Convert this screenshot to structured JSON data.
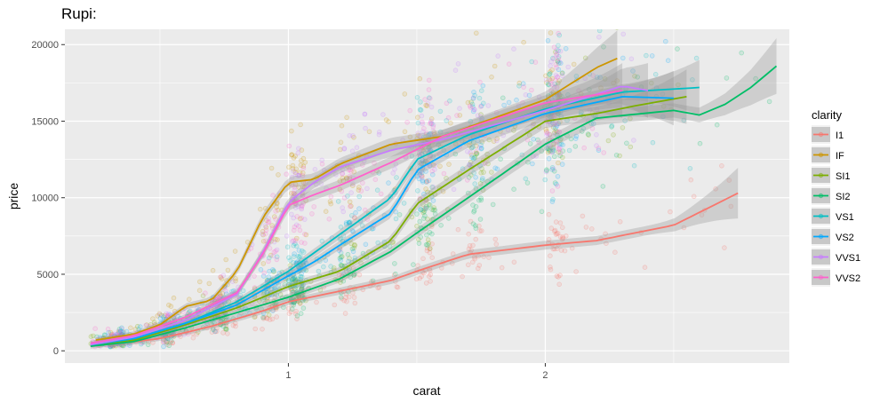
{
  "chart_data": {
    "type": "scatter",
    "title": "Rupi:",
    "xlabel": "carat",
    "ylabel": "price",
    "xlim": [
      0.13,
      2.95
    ],
    "ylim": [
      -800,
      21000
    ],
    "x_ticks": [
      1,
      2
    ],
    "x_tick_labels": [
      "1",
      "2"
    ],
    "y_ticks": [
      0,
      5000,
      10000,
      15000,
      20000
    ],
    "y_tick_labels": [
      "0",
      "5000",
      "10000",
      "15000",
      "20000"
    ],
    "grid": true,
    "legend": {
      "title": "clarity",
      "position": "right"
    },
    "series": [
      {
        "name": "I1",
        "color": "#F8766D",
        "smooth": [
          [
            0.3,
            400
          ],
          [
            0.5,
            800
          ],
          [
            0.7,
            1600
          ],
          [
            0.9,
            2600
          ],
          [
            1.0,
            3200
          ],
          [
            1.2,
            3900
          ],
          [
            1.4,
            4600
          ],
          [
            1.5,
            5200
          ],
          [
            1.7,
            6300
          ],
          [
            2.0,
            6900
          ],
          [
            2.2,
            7200
          ],
          [
            2.5,
            8200
          ],
          [
            2.75,
            10300
          ]
        ]
      },
      {
        "name": "IF",
        "color": "#CD9600",
        "smooth": [
          [
            0.25,
            700
          ],
          [
            0.4,
            1100
          ],
          [
            0.5,
            1700
          ],
          [
            0.6,
            2900
          ],
          [
            0.7,
            3300
          ],
          [
            0.8,
            5200
          ],
          [
            0.9,
            8700
          ],
          [
            1.0,
            11000
          ],
          [
            1.1,
            11200
          ],
          [
            1.2,
            12200
          ],
          [
            1.4,
            13500
          ],
          [
            1.6,
            14000
          ],
          [
            2.0,
            16400
          ],
          [
            2.2,
            18500
          ],
          [
            2.28,
            19100
          ]
        ]
      },
      {
        "name": "SI1",
        "color": "#7CAE00",
        "smooth": [
          [
            0.23,
            400
          ],
          [
            0.4,
            700
          ],
          [
            0.6,
            1700
          ],
          [
            0.8,
            2800
          ],
          [
            1.0,
            4200
          ],
          [
            1.2,
            5200
          ],
          [
            1.4,
            7200
          ],
          [
            1.5,
            9600
          ],
          [
            1.7,
            11800
          ],
          [
            2.0,
            15000
          ],
          [
            2.2,
            15500
          ],
          [
            2.35,
            16000
          ],
          [
            2.55,
            16600
          ]
        ]
      },
      {
        "name": "SI2",
        "color": "#00BE67",
        "smooth": [
          [
            0.23,
            300
          ],
          [
            0.4,
            600
          ],
          [
            0.6,
            1500
          ],
          [
            0.8,
            2500
          ],
          [
            1.0,
            3500
          ],
          [
            1.2,
            4700
          ],
          [
            1.4,
            6500
          ],
          [
            1.5,
            7700
          ],
          [
            1.7,
            10000
          ],
          [
            2.0,
            13500
          ],
          [
            2.2,
            15200
          ],
          [
            2.5,
            15700
          ],
          [
            2.6,
            15400
          ],
          [
            2.7,
            16100
          ],
          [
            2.8,
            17200
          ],
          [
            2.9,
            18600
          ]
        ]
      },
      {
        "name": "VS1",
        "color": "#00BFC4",
        "smooth": [
          [
            0.23,
            400
          ],
          [
            0.4,
            800
          ],
          [
            0.6,
            1800
          ],
          [
            0.8,
            3200
          ],
          [
            1.0,
            5200
          ],
          [
            1.1,
            6400
          ],
          [
            1.2,
            7600
          ],
          [
            1.4,
            10000
          ],
          [
            1.5,
            12500
          ],
          [
            1.7,
            14100
          ],
          [
            2.0,
            15800
          ],
          [
            2.3,
            16900
          ],
          [
            2.6,
            17200
          ]
        ]
      },
      {
        "name": "VS2",
        "color": "#00A9FF",
        "smooth": [
          [
            0.23,
            400
          ],
          [
            0.4,
            800
          ],
          [
            0.6,
            1800
          ],
          [
            0.8,
            3000
          ],
          [
            1.0,
            4900
          ],
          [
            1.1,
            5800
          ],
          [
            1.2,
            6900
          ],
          [
            1.4,
            9000
          ],
          [
            1.5,
            11800
          ],
          [
            1.7,
            13700
          ],
          [
            2.0,
            15500
          ],
          [
            2.3,
            16600
          ],
          [
            2.5,
            16500
          ]
        ]
      },
      {
        "name": "VVS1",
        "color": "#C77CFF",
        "smooth": [
          [
            0.23,
            400
          ],
          [
            0.4,
            900
          ],
          [
            0.6,
            2000
          ],
          [
            0.8,
            3700
          ],
          [
            0.9,
            6400
          ],
          [
            1.0,
            9700
          ],
          [
            1.1,
            11000
          ],
          [
            1.2,
            12000
          ],
          [
            1.4,
            13100
          ],
          [
            1.6,
            13800
          ],
          [
            2.0,
            15700
          ],
          [
            2.3,
            17300
          ],
          [
            2.4,
            17000
          ]
        ]
      },
      {
        "name": "VVS2",
        "color": "#FF61CC",
        "smooth": [
          [
            0.23,
            500
          ],
          [
            0.4,
            1000
          ],
          [
            0.6,
            2200
          ],
          [
            0.8,
            3800
          ],
          [
            0.9,
            6300
          ],
          [
            1.0,
            9500
          ],
          [
            1.1,
            10200
          ],
          [
            1.2,
            10800
          ],
          [
            1.4,
            12300
          ],
          [
            1.6,
            14000
          ],
          [
            2.0,
            16200
          ],
          [
            2.3,
            17000
          ]
        ]
      }
    ]
  }
}
